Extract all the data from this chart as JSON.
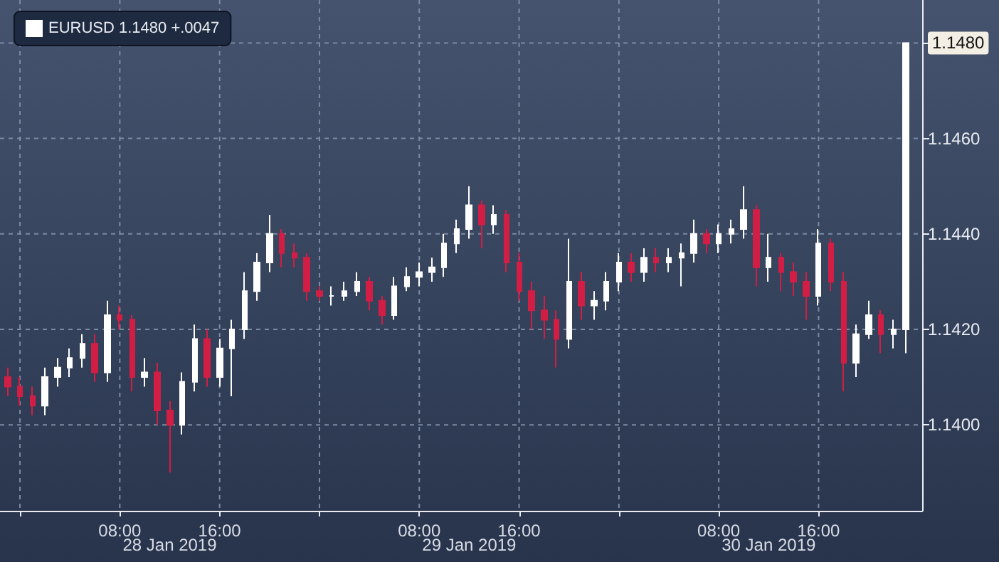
{
  "chart_data": {
    "type": "candlestick",
    "x": [
      "2019-01-27T23:00",
      "2019-01-28T00:00",
      "2019-01-28T01:00",
      "2019-01-28T02:00",
      "2019-01-28T03:00",
      "2019-01-28T04:00",
      "2019-01-28T05:00",
      "2019-01-28T06:00",
      "2019-01-28T07:00",
      "2019-01-28T08:00",
      "2019-01-28T09:00",
      "2019-01-28T10:00",
      "2019-01-28T11:00",
      "2019-01-28T12:00",
      "2019-01-28T13:00",
      "2019-01-28T14:00",
      "2019-01-28T15:00",
      "2019-01-28T16:00",
      "2019-01-28T17:00",
      "2019-01-28T18:00",
      "2019-01-28T19:00",
      "2019-01-28T20:00",
      "2019-01-28T21:00",
      "2019-01-28T22:00",
      "2019-01-28T23:00",
      "2019-01-29T00:00",
      "2019-01-29T01:00",
      "2019-01-29T02:00",
      "2019-01-29T03:00",
      "2019-01-29T04:00",
      "2019-01-29T05:00",
      "2019-01-29T06:00",
      "2019-01-29T07:00",
      "2019-01-29T08:00",
      "2019-01-29T09:00",
      "2019-01-29T10:00",
      "2019-01-29T11:00",
      "2019-01-29T12:00",
      "2019-01-29T13:00",
      "2019-01-29T14:00",
      "2019-01-29T15:00",
      "2019-01-29T16:00",
      "2019-01-29T17:00",
      "2019-01-29T18:00",
      "2019-01-29T19:00",
      "2019-01-29T20:00",
      "2019-01-29T21:00",
      "2019-01-29T22:00",
      "2019-01-29T23:00",
      "2019-01-30T00:00",
      "2019-01-30T01:00",
      "2019-01-30T02:00",
      "2019-01-30T03:00",
      "2019-01-30T04:00",
      "2019-01-30T05:00",
      "2019-01-30T06:00",
      "2019-01-30T07:00",
      "2019-01-30T08:00",
      "2019-01-30T09:00",
      "2019-01-30T10:00",
      "2019-01-30T11:00",
      "2019-01-30T12:00",
      "2019-01-30T13:00",
      "2019-01-30T14:00",
      "2019-01-30T15:00",
      "2019-01-30T16:00",
      "2019-01-30T17:00",
      "2019-01-30T18:00",
      "2019-01-30T19:00",
      "2019-01-30T20:00",
      "2019-01-30T21:00",
      "2019-01-30T22:00",
      "2019-01-30T23:00"
    ],
    "series": [
      {
        "name": "EURUSD 1.1480 +.0047",
        "color": "#ffffff",
        "colors": [
          "#d21e45",
          "#d21e45",
          "#d21e45",
          "#ffffff",
          "#ffffff",
          "#ffffff",
          "#ffffff",
          "#d21e45",
          "#ffffff",
          "#d21e45",
          "#d21e45",
          "#ffffff",
          "#d21e45",
          "#d21e45",
          "#ffffff",
          "#ffffff",
          "#d21e45",
          "#ffffff",
          "#ffffff",
          "#ffffff",
          "#ffffff",
          "#ffffff",
          "#d21e45",
          "#d21e45",
          "#d21e45",
          "#d21e45",
          "#ffffff",
          "#ffffff",
          "#ffffff",
          "#d21e45",
          "#d21e45",
          "#ffffff",
          "#ffffff",
          "#ffffff",
          "#ffffff",
          "#ffffff",
          "#ffffff",
          "#ffffff",
          "#d21e45",
          "#ffffff",
          "#d21e45",
          "#d21e45",
          "#d21e45",
          "#d21e45",
          "#d21e45",
          "#ffffff",
          "#d21e45",
          "#ffffff",
          "#ffffff",
          "#ffffff",
          "#d21e45",
          "#ffffff",
          "#d21e45",
          "#ffffff",
          "#ffffff",
          "#ffffff",
          "#d21e45",
          "#ffffff",
          "#ffffff",
          "#ffffff",
          "#d21e45",
          "#ffffff",
          "#d21e45",
          "#d21e45",
          "#d21e45",
          "#ffffff",
          "#d21e45",
          "#d21e45",
          "#ffffff",
          "#ffffff",
          "#d21e45",
          "#ffffff",
          "#ffffff"
        ],
        "ohlc": [
          [
            1.141,
            1.1412,
            1.1406,
            1.1408
          ],
          [
            1.1408,
            1.141,
            1.1404,
            1.1406
          ],
          [
            1.1406,
            1.1408,
            1.1402,
            1.1404
          ],
          [
            1.1404,
            1.1412,
            1.1402,
            1.141
          ],
          [
            1.141,
            1.1414,
            1.1408,
            1.1412
          ],
          [
            1.1412,
            1.1416,
            1.141,
            1.1414
          ],
          [
            1.1414,
            1.1419,
            1.1412,
            1.1417
          ],
          [
            1.1417,
            1.1419,
            1.1409,
            1.1411
          ],
          [
            1.1411,
            1.1426,
            1.1409,
            1.1423
          ],
          [
            1.1423,
            1.1425,
            1.142,
            1.1422
          ],
          [
            1.1422,
            1.1423,
            1.1407,
            1.141
          ],
          [
            1.141,
            1.1414,
            1.1408,
            1.1411
          ],
          [
            1.1411,
            1.1413,
            1.14,
            1.1403
          ],
          [
            1.1403,
            1.1405,
            1.139,
            1.14
          ],
          [
            1.14,
            1.1411,
            1.1398,
            1.1409
          ],
          [
            1.1409,
            1.1421,
            1.1407,
            1.1418
          ],
          [
            1.1418,
            1.142,
            1.1408,
            1.141
          ],
          [
            1.141,
            1.1418,
            1.1408,
            1.1416
          ],
          [
            1.1416,
            1.1422,
            1.1406,
            1.142
          ],
          [
            1.142,
            1.1432,
            1.1418,
            1.1428
          ],
          [
            1.1428,
            1.1436,
            1.1426,
            1.1434
          ],
          [
            1.1434,
            1.1444,
            1.1432,
            1.144
          ],
          [
            1.144,
            1.1441,
            1.1433,
            1.1436
          ],
          [
            1.1436,
            1.1438,
            1.1433,
            1.1435
          ],
          [
            1.1435,
            1.1436,
            1.1426,
            1.1428
          ],
          [
            1.1428,
            1.1429,
            1.1426,
            1.1427
          ],
          [
            1.1427,
            1.1429,
            1.1425,
            1.1427
          ],
          [
            1.1427,
            1.143,
            1.1426,
            1.1428
          ],
          [
            1.1428,
            1.1432,
            1.1427,
            1.143
          ],
          [
            1.143,
            1.1431,
            1.1424,
            1.1426
          ],
          [
            1.1426,
            1.1427,
            1.1421,
            1.1423
          ],
          [
            1.1423,
            1.1431,
            1.1422,
            1.1429
          ],
          [
            1.1429,
            1.1433,
            1.1428,
            1.1431
          ],
          [
            1.1431,
            1.1434,
            1.1429,
            1.1432
          ],
          [
            1.1432,
            1.1435,
            1.143,
            1.1433
          ],
          [
            1.1433,
            1.144,
            1.1431,
            1.1438
          ],
          [
            1.1438,
            1.1443,
            1.1436,
            1.1441
          ],
          [
            1.1441,
            1.145,
            1.1439,
            1.1446
          ],
          [
            1.1446,
            1.1447,
            1.1437,
            1.1442
          ],
          [
            1.1442,
            1.1446,
            1.144,
            1.1444
          ],
          [
            1.1444,
            1.1445,
            1.1432,
            1.1434
          ],
          [
            1.1434,
            1.1436,
            1.1426,
            1.1428
          ],
          [
            1.1428,
            1.143,
            1.142,
            1.1424
          ],
          [
            1.1424,
            1.1427,
            1.1418,
            1.1422
          ],
          [
            1.1422,
            1.1424,
            1.1412,
            1.1418
          ],
          [
            1.1418,
            1.1439,
            1.1416,
            1.143
          ],
          [
            1.143,
            1.1432,
            1.1422,
            1.1425
          ],
          [
            1.1425,
            1.1428,
            1.1422,
            1.1426
          ],
          [
            1.1426,
            1.1432,
            1.1424,
            1.143
          ],
          [
            1.143,
            1.1436,
            1.1428,
            1.1434
          ],
          [
            1.1434,
            1.1436,
            1.143,
            1.1432
          ],
          [
            1.1432,
            1.1437,
            1.143,
            1.1435
          ],
          [
            1.1435,
            1.1437,
            1.1432,
            1.1434
          ],
          [
            1.1434,
            1.1437,
            1.1432,
            1.1435
          ],
          [
            1.1435,
            1.1438,
            1.1429,
            1.1436
          ],
          [
            1.1436,
            1.1443,
            1.1434,
            1.144
          ],
          [
            1.144,
            1.1441,
            1.1436,
            1.1438
          ],
          [
            1.1438,
            1.1442,
            1.1436,
            1.144
          ],
          [
            1.144,
            1.1443,
            1.1438,
            1.1441
          ],
          [
            1.1441,
            1.145,
            1.1439,
            1.1445
          ],
          [
            1.1445,
            1.1446,
            1.1429,
            1.1433
          ],
          [
            1.1433,
            1.144,
            1.143,
            1.1435
          ],
          [
            1.1435,
            1.1436,
            1.1428,
            1.1432
          ],
          [
            1.1432,
            1.1434,
            1.1427,
            1.143
          ],
          [
            1.143,
            1.1432,
            1.1422,
            1.1427
          ],
          [
            1.1427,
            1.1441,
            1.1425,
            1.1438
          ],
          [
            1.1438,
            1.1439,
            1.1428,
            1.143
          ],
          [
            1.143,
            1.1432,
            1.1407,
            1.1413
          ],
          [
            1.1413,
            1.1421,
            1.141,
            1.1419
          ],
          [
            1.1419,
            1.1426,
            1.1418,
            1.1423
          ],
          [
            1.1423,
            1.1424,
            1.1415,
            1.1419
          ],
          [
            1.1419,
            1.1422,
            1.1416,
            1.142
          ],
          [
            1.142,
            1.148,
            1.1415,
            1.148
          ]
        ]
      }
    ],
    "xlim": [
      "2019-01-27T22:24",
      "2019-01-31T00:18"
    ],
    "xticks": [
      {
        "value": "2019-01-28T00:00",
        "label": null
      },
      {
        "value": "2019-01-28T08:00",
        "label": "08:00"
      },
      {
        "value": "2019-01-28T16:00",
        "label": "16:00"
      },
      {
        "value": "2019-01-29T00:00",
        "label": null
      },
      {
        "value": "2019-01-29T08:00",
        "label": "08:00"
      },
      {
        "value": "2019-01-29T16:00",
        "label": "16:00"
      },
      {
        "value": "2019-01-30T00:00",
        "label": null
      },
      {
        "value": "2019-01-30T08:00",
        "label": "08:00"
      },
      {
        "value": "2019-01-30T16:00",
        "label": "16:00"
      }
    ],
    "ylim": [
      1.1382,
      1.1489
    ],
    "yticks": [
      {
        "value": 1.14,
        "label": "1.1400"
      },
      {
        "value": 1.142,
        "label": "1.1420"
      },
      {
        "value": 1.144,
        "label": "1.1440"
      },
      {
        "value": 1.146,
        "label": "1.1460"
      },
      {
        "value": 1.148,
        "label": "1.1480"
      }
    ],
    "annotations": [
      "28 Jan 2019",
      "29 Jan 2019",
      "30 Jan 2019"
    ],
    "grid": true,
    "legend": "top left"
  }
}
